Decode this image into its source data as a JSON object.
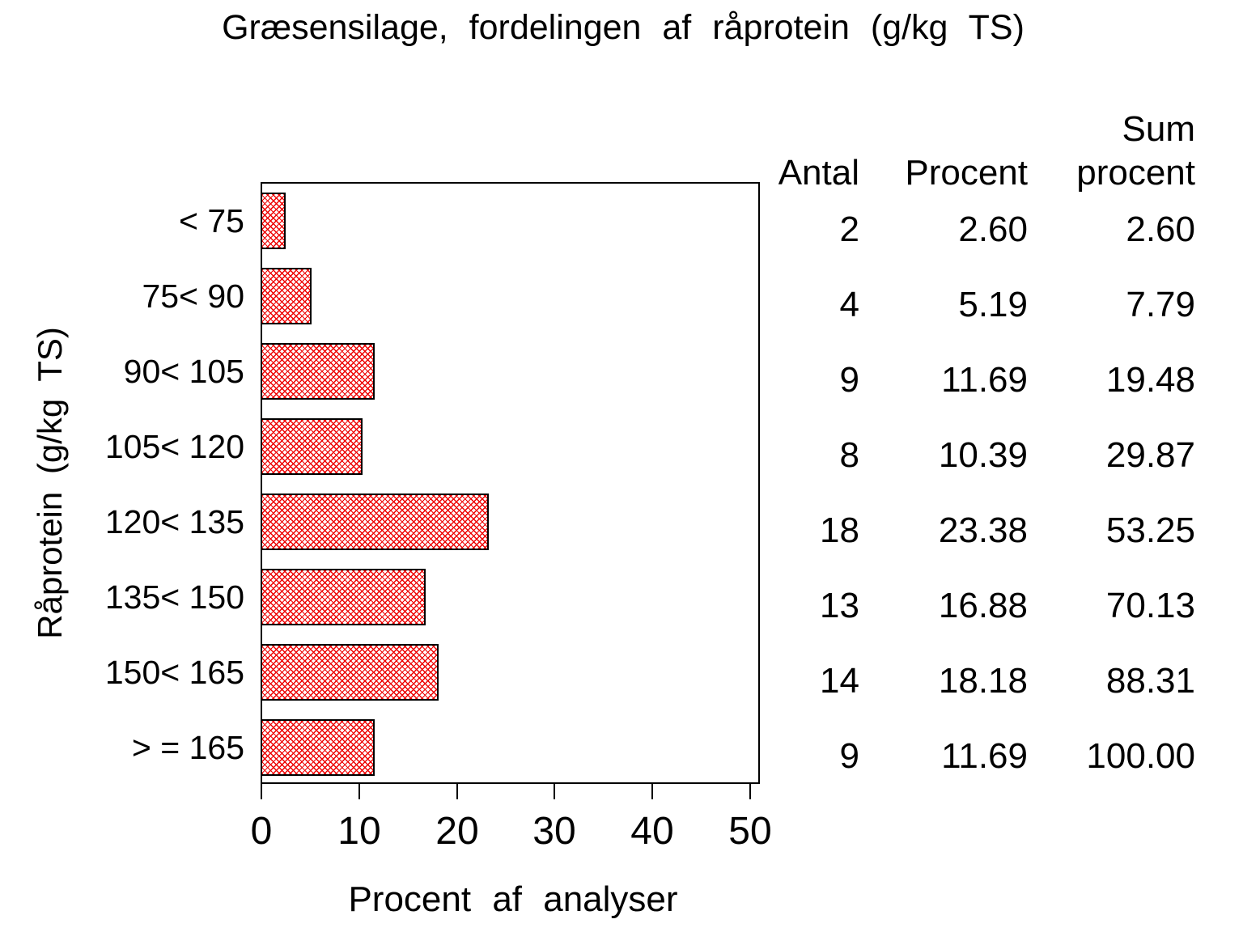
{
  "title": "Græsensilage, fordelingen af råprotein (g/kg TS)",
  "chart_data": {
    "type": "bar",
    "orientation": "horizontal",
    "title": "Græsensilage, fordelingen af råprotein (g/kg TS)",
    "xlabel": "Procent af analyser",
    "ylabel": "Råprotein (g/kg TS)",
    "categories": [
      "< 75",
      "75< 90",
      "90< 105",
      "105< 120",
      "120< 135",
      "135< 150",
      "150< 165",
      "> = 165"
    ],
    "values": [
      2.6,
      5.19,
      11.69,
      10.39,
      23.38,
      16.88,
      18.18,
      11.69
    ],
    "counts": [
      2,
      4,
      9,
      8,
      18,
      13,
      14,
      9
    ],
    "cumulative_percent": [
      2.6,
      7.79,
      19.48,
      29.87,
      53.25,
      70.13,
      88.31,
      100.0
    ],
    "xlim": [
      0,
      50
    ],
    "xticks": [
      0,
      10,
      20,
      30,
      40,
      50
    ],
    "grid": false,
    "legend": "none",
    "bar_fill_pattern": "red-crosshatch",
    "bar_pattern_color": "#ee0000",
    "bar_border_color": "#000000",
    "table": {
      "header_sum_line1": "Sum",
      "header_antal": "Antal",
      "header_procent": "Procent",
      "header_sum_line2": "procent",
      "headers": [
        "Antal",
        "Procent",
        "Sum procent"
      ],
      "rows": [
        [
          "2",
          "2.60",
          "2.60"
        ],
        [
          "4",
          "5.19",
          "7.79"
        ],
        [
          "9",
          "11.69",
          "19.48"
        ],
        [
          "8",
          "10.39",
          "29.87"
        ],
        [
          "18",
          "23.38",
          "53.25"
        ],
        [
          "13",
          "16.88",
          "70.13"
        ],
        [
          "14",
          "18.18",
          "88.31"
        ],
        [
          "9",
          "11.69",
          "100.00"
        ]
      ]
    }
  }
}
